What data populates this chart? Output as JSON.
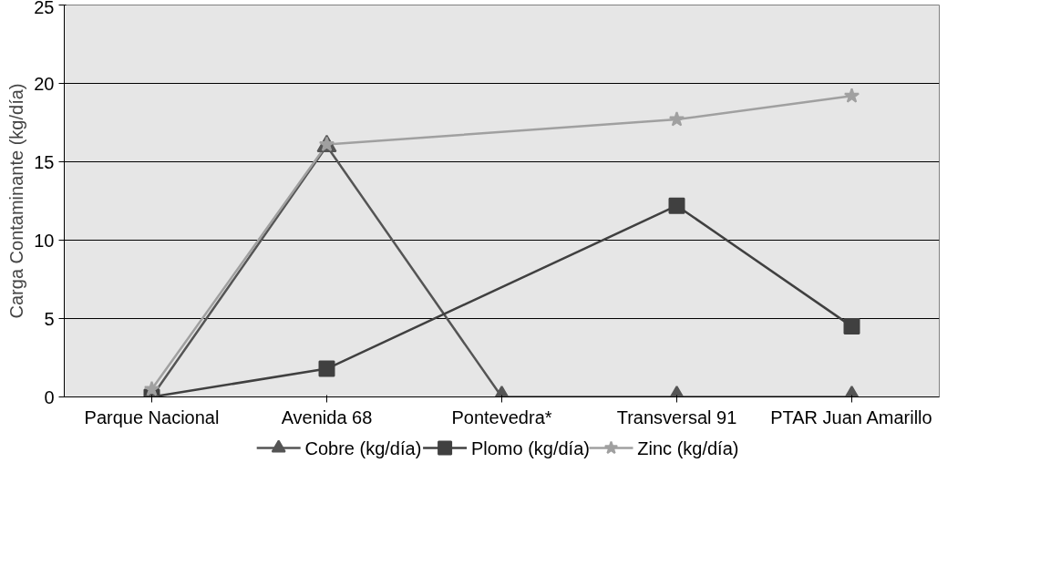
{
  "chart_data": {
    "type": "line",
    "ylabel": "Carga Contaminante (kg/día)",
    "categories": [
      "Parque Nacional",
      "Avenida 68",
      "Pontevedra*",
      "Transversal 91",
      "PTAR Juan Amarillo"
    ],
    "ylim": [
      0,
      25
    ],
    "yticks": [
      0,
      5,
      10,
      15,
      20,
      25
    ],
    "grid": "y",
    "legend": "bottom",
    "series": [
      {
        "name": "Cobre (kg/día)",
        "color": "#555555",
        "marker": "triangle",
        "values": [
          0,
          16,
          0,
          0,
          0
        ]
      },
      {
        "name": "Plomo (kg/día)",
        "color": "#404040",
        "marker": "square",
        "values": [
          0,
          1.8,
          null,
          12.2,
          4.5
        ]
      },
      {
        "name": "Zinc (kg/día)",
        "color": "#a0a0a0",
        "marker": "star",
        "values": [
          0.5,
          16.1,
          null,
          17.7,
          19.2
        ]
      }
    ]
  }
}
